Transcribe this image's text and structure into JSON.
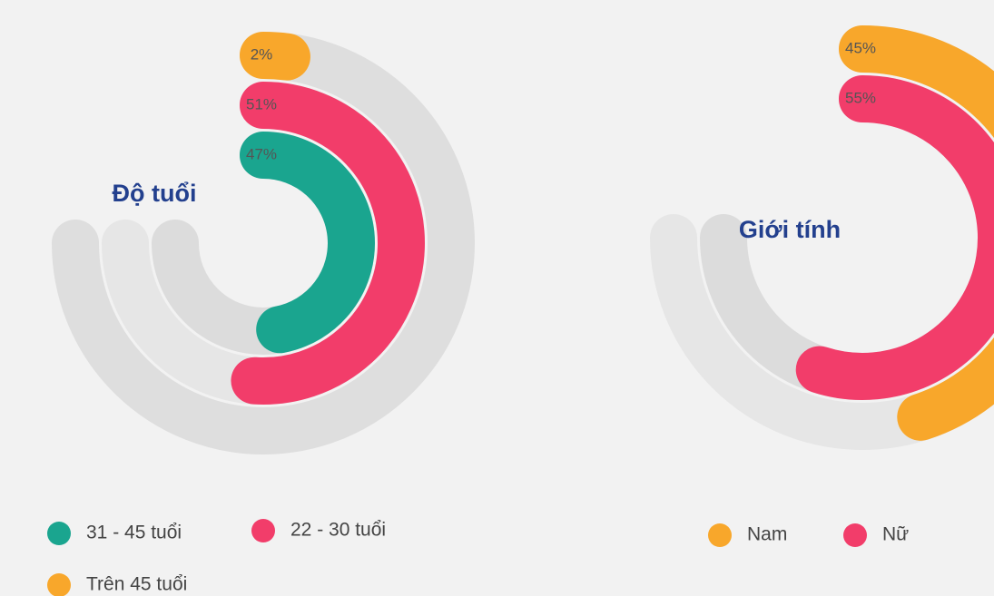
{
  "chart_data": [
    {
      "type": "radial_bar",
      "title": "Độ tuổi",
      "ring_order": "outward",
      "categories": [
        "31 - 45 tuổi",
        "22 - 30 tuổi",
        "Trên 45 tuổi"
      ],
      "values": [
        47,
        51,
        2
      ],
      "value_labels": [
        "47%",
        "51%",
        "2%"
      ],
      "colors": [
        "#1aa58f",
        "#f23d6a",
        "#f8a72b"
      ]
    },
    {
      "type": "radial_bar",
      "title": "Giới tính",
      "ring_order": "inward",
      "categories": [
        "Nam",
        "Nữ"
      ],
      "values": [
        45,
        55
      ],
      "value_labels": [
        "45%",
        "55%"
      ],
      "colors": [
        "#f8a72b",
        "#f23d6a"
      ]
    }
  ]
}
